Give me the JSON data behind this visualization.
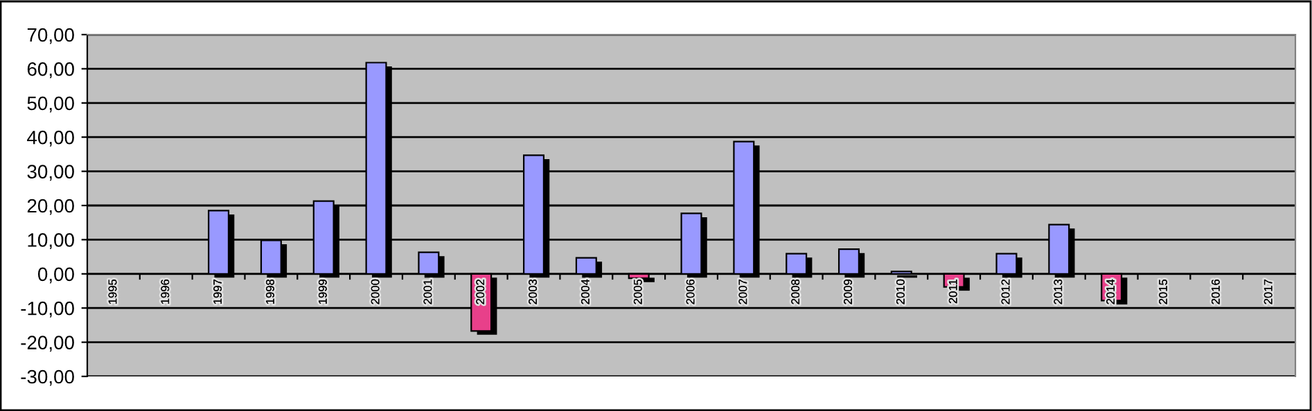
{
  "chart_data": {
    "type": "bar",
    "categories": [
      "1995",
      "1996",
      "1997",
      "1998",
      "1999",
      "2000",
      "2001",
      "2002",
      "2003",
      "2004",
      "2005",
      "2006",
      "2007",
      "2008",
      "2009",
      "2010",
      "2011",
      "2012",
      "2013",
      "2014",
      "2015",
      "2016",
      "2017"
    ],
    "values": [
      null,
      null,
      18.5,
      9.8,
      21.3,
      61.8,
      6.3,
      -16.7,
      34.7,
      4.7,
      -1.3,
      17.7,
      38.7,
      5.9,
      7.2,
      0.7,
      -3.8,
      5.9,
      14.4,
      -7.8,
      null,
      null,
      null
    ],
    "colors": [
      "#9999ff",
      "#9999ff",
      "#9999ff",
      "#9999ff",
      "#9999ff",
      "#9999ff",
      "#9999ff",
      "#e8408a",
      "#9999ff",
      "#9999ff",
      "#e8408a",
      "#9999ff",
      "#9999ff",
      "#9999ff",
      "#9999ff",
      "#9999ff",
      "#e8408a",
      "#9999ff",
      "#9999ff",
      "#e8408a",
      "#9999ff",
      "#9999ff",
      "#9999ff"
    ],
    "ylim": [
      -30,
      70
    ],
    "yticks": [
      {
        "value": -30,
        "label": "-30,00"
      },
      {
        "value": -20,
        "label": "-20,00"
      },
      {
        "value": -10,
        "label": "-10,00"
      },
      {
        "value": 0,
        "label": "0,00"
      },
      {
        "value": 10,
        "label": "10,00"
      },
      {
        "value": 20,
        "label": "20,00"
      },
      {
        "value": 30,
        "label": "30,00"
      },
      {
        "value": 40,
        "label": "40,00"
      },
      {
        "value": 50,
        "label": "50,00"
      },
      {
        "value": 60,
        "label": "60,00"
      },
      {
        "value": 70,
        "label": "70,00"
      }
    ],
    "grid": "y"
  }
}
